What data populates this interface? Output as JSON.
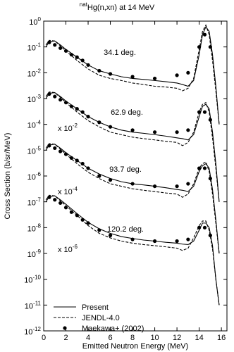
{
  "chart_data": {
    "type": "line",
    "title_prefix": "nat",
    "title": "Hg(n,xn) at 14 MeV",
    "xlabel": "Emitted Neutron Energy (MeV)",
    "ylabel": "Cross Section (b/sr/MeV)",
    "log_y": true,
    "xlim": [
      0,
      16.5
    ],
    "ylim": [
      1e-12,
      1
    ],
    "xticks": [
      0,
      2,
      4,
      6,
      8,
      10,
      12,
      14,
      16
    ],
    "yticks": [
      {
        "value": 1,
        "label": "10",
        "exp": "0"
      },
      {
        "value": 0.1,
        "label": "10",
        "exp": "-1"
      },
      {
        "value": 0.01,
        "label": "10",
        "exp": "-2"
      },
      {
        "value": 0.001,
        "label": "10",
        "exp": "-3"
      },
      {
        "value": 0.0001,
        "label": "10",
        "exp": "-4"
      },
      {
        "value": 1e-05,
        "label": "10",
        "exp": "-5"
      },
      {
        "value": 1e-06,
        "label": "10",
        "exp": "-6"
      },
      {
        "value": 1e-07,
        "label": "10",
        "exp": "-7"
      },
      {
        "value": 1e-08,
        "label": "10",
        "exp": "-8"
      },
      {
        "value": 1e-09,
        "label": "10",
        "exp": "-9"
      },
      {
        "value": 1e-10,
        "label": "10",
        "exp": "-10"
      },
      {
        "value": 1e-11,
        "label": "10",
        "exp": "-11"
      },
      {
        "value": 1e-12,
        "label": "10",
        "exp": "-12"
      }
    ],
    "legend": "lower left",
    "angles": [
      "34.1 deg.",
      "62.9 deg.",
      "93.7 deg.",
      "120.2 deg."
    ],
    "scale_labels": [
      {
        "text": "x 10",
        "exp": "-2"
      },
      {
        "text": "x 10",
        "exp": "-4"
      },
      {
        "text": "x 10",
        "exp": "-6"
      }
    ],
    "x": [
      0.2,
      0.5,
      1,
      1.5,
      2,
      3,
      4,
      5,
      6,
      7,
      8,
      9,
      10,
      11,
      12,
      12.5,
      13,
      13.5,
      14,
      14.3,
      14.6,
      14.9,
      15.2,
      15.5,
      15.8
    ],
    "series": [
      {
        "name": "Present",
        "color": "#000000",
        "dash": "solid",
        "curves": [
          [
            0.1,
            0.16,
            0.17,
            0.12,
            0.08,
            0.04,
            0.02,
            0.012,
            0.009,
            0.007,
            0.006,
            0.0055,
            0.005,
            0.0045,
            0.004,
            0.0035,
            0.003,
            0.005,
            0.05,
            0.3,
            0.6,
            0.4,
            0.05,
            0.003,
            0.0001
          ],
          [
            0.001,
            0.0016,
            0.0017,
            0.0012,
            0.0008,
            0.0004,
            0.0002,
            0.00012,
            8e-05,
            6e-05,
            5e-05,
            4.5e-05,
            4e-05,
            3.5e-05,
            3e-05,
            2.8e-05,
            2.5e-05,
            4e-05,
            0.0002,
            0.0005,
            0.0006,
            0.0004,
            5e-05,
            3e-06,
            1e-07
          ],
          [
            1e-05,
            1.6e-05,
            1.7e-05,
            1.2e-05,
            8e-06,
            4e-06,
            2e-06,
            1.2e-06,
            8e-07,
            6e-07,
            5e-07,
            4.5e-07,
            4e-07,
            3.5e-07,
            3e-07,
            2.8e-07,
            2.5e-07,
            4e-07,
            1.5e-06,
            2.5e-06,
            3e-06,
            2e-06,
            3e-07,
            2e-08,
            1e-09
          ],
          [
            1e-07,
            1.6e-07,
            1.7e-07,
            1.2e-07,
            8e-08,
            3.5e-08,
            1.6e-08,
            9e-09,
            6e-09,
            4.5e-09,
            3.8e-09,
            3.3e-09,
            3e-09,
            2.7e-09,
            2.5e-09,
            2.3e-09,
            2.2e-09,
            3e-09,
            8e-09,
            1.5e-08,
            1.5e-08,
            1e-08,
            2e-09,
            1e-10,
            1e-11
          ]
        ]
      },
      {
        "name": "JENDL-4.0",
        "color": "#000000",
        "dash": "dashed",
        "curves": [
          [
            0.12,
            0.18,
            0.17,
            0.11,
            0.07,
            0.03,
            0.014,
            0.008,
            0.006,
            0.005,
            0.004,
            0.0035,
            0.003,
            0.0028,
            0.0025,
            0.002,
            0.0025,
            0.006,
            0.08,
            0.4,
            0.7,
            0.3,
            0.03,
            0.002,
            0.0001
          ],
          [
            0.0012,
            0.0018,
            0.0017,
            0.0011,
            0.0007,
            0.0003,
            0.00014,
            8e-05,
            5e-05,
            4e-05,
            3.2e-05,
            2.8e-05,
            2.5e-05,
            2.2e-05,
            2e-05,
            1.5e-05,
            2e-05,
            5e-05,
            0.0003,
            0.0006,
            0.0007,
            0.0003,
            3e-05,
            2e-06,
            1e-07
          ],
          [
            1.2e-05,
            1.8e-05,
            1.7e-05,
            1.1e-05,
            7e-06,
            3e-06,
            1.4e-06,
            8e-07,
            5e-07,
            4e-07,
            3.2e-07,
            2.8e-07,
            2.5e-07,
            2.2e-07,
            2e-07,
            1.5e-07,
            2e-07,
            5e-07,
            2e-06,
            3e-06,
            3.5e-06,
            1.5e-06,
            2e-07,
            1.5e-08,
            1e-09
          ],
          [
            1.2e-07,
            1.8e-07,
            1.7e-07,
            1.1e-07,
            7e-08,
            3e-08,
            1.2e-08,
            6e-09,
            4e-09,
            3e-09,
            2.5e-09,
            2.2e-09,
            2e-09,
            1.8e-09,
            1.6e-09,
            1.3e-09,
            1.6e-09,
            4e-09,
            1.2e-08,
            1.8e-08,
            1.8e-08,
            8e-09,
            1.5e-09,
            1e-10,
            1e-11
          ]
        ]
      },
      {
        "name": "Maekawa+ (2002)",
        "color": "#000000",
        "marker": "circle",
        "x": [
          0.5,
          1,
          1.5,
          2,
          2.5,
          3,
          3.5,
          4,
          5,
          6,
          8,
          10,
          12,
          13,
          14,
          14.5,
          15
        ],
        "curves": [
          [
            0.15,
            0.12,
            0.09,
            0.07,
            0.05,
            0.04,
            0.03,
            0.02,
            0.012,
            0.009,
            0.007,
            0.006,
            0.008,
            0.01,
            0.1,
            0.3,
            0.1
          ],
          [
            0.0015,
            0.0012,
            0.0009,
            0.0007,
            0.0005,
            0.0004,
            0.0003,
            0.0002,
            0.00012,
            8e-05,
            6e-05,
            5e-05,
            5e-05,
            6e-05,
            0.0003,
            0.0003,
            0.00015
          ],
          [
            1.5e-05,
            1.2e-05,
            9e-06,
            7e-06,
            5e-06,
            4e-06,
            3e-06,
            2e-06,
            1e-06,
            7e-07,
            5e-07,
            4e-07,
            4e-07,
            5e-07,
            2e-06,
            2e-06,
            8e-07
          ],
          [
            1.5e-07,
            1.2e-07,
            9e-08,
            6e-08,
            4e-08,
            3e-08,
            2e-08,
            1.5e-08,
            8e-09,
            5e-09,
            3.5e-09,
            3e-09,
            3e-09,
            3.5e-09,
            1e-08,
            1e-08,
            5e-09
          ]
        ]
      }
    ]
  }
}
